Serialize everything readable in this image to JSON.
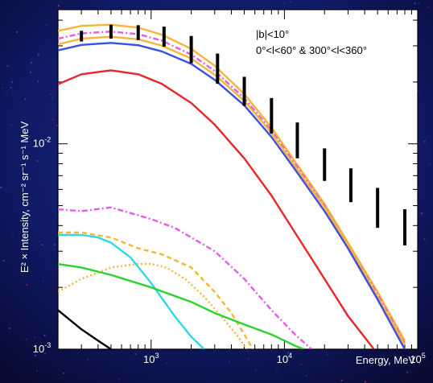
{
  "chart_data": {
    "type": "line",
    "title": "",
    "xlabel": "Energy, MeV",
    "ylabel": "E² × Intensity, cm⁻² sr⁻¹ s⁻¹ MeV",
    "xscale": "log",
    "yscale": "log",
    "xlim": [
      200,
      100000
    ],
    "ylim": [
      0.001,
      0.045
    ],
    "grid": false,
    "x_ticks": [
      {
        "value": 1000,
        "label": "10",
        "exp": "3"
      },
      {
        "value": 10000,
        "label": "10",
        "exp": "4"
      },
      {
        "value": 100000,
        "label": "10",
        "exp": "5"
      }
    ],
    "y_ticks": [
      {
        "value": 0.001,
        "label": "10",
        "exp": "-3"
      },
      {
        "value": 0.01,
        "label": "10",
        "exp": "-2"
      }
    ],
    "annotation": {
      "line1": "|b|<10°",
      "line2": "0°<l<60° & 300°<l<360°"
    },
    "series": [
      {
        "color": "#f5b638",
        "style": "solid",
        "x": [
          200,
          300,
          500,
          800,
          1200,
          2000,
          3000,
          5000,
          8000,
          12000,
          20000,
          30000,
          50000,
          80000
        ],
        "y": [
          0.0355,
          0.0375,
          0.038,
          0.0368,
          0.034,
          0.029,
          0.024,
          0.0175,
          0.012,
          0.0082,
          0.0051,
          0.0033,
          0.0019,
          0.0011
        ]
      },
      {
        "color": "#e55be6",
        "style": "dashdot",
        "x": [
          200,
          300,
          500,
          800,
          1200,
          2000,
          3000,
          5000,
          8000,
          12000,
          20000,
          30000,
          50000,
          80000
        ],
        "y": [
          0.0325,
          0.0345,
          0.0352,
          0.0342,
          0.0318,
          0.0272,
          0.0226,
          0.0167,
          0.0116,
          0.008,
          0.005,
          0.0032,
          0.00185,
          0.00107
        ]
      },
      {
        "color": "#f5b638",
        "style": "solid",
        "x": [
          200,
          300,
          500,
          800,
          1200,
          2000,
          3000,
          5000,
          8000,
          12000,
          20000,
          30000,
          50000,
          80000
        ],
        "y": [
          0.0305,
          0.0325,
          0.0332,
          0.0323,
          0.0301,
          0.026,
          0.0217,
          0.0162,
          0.0113,
          0.0078,
          0.0049,
          0.0032,
          0.0018,
          0.00105
        ]
      },
      {
        "color": "#3b4fe0",
        "style": "solid",
        "x": [
          200,
          300,
          500,
          800,
          1200,
          2000,
          3000,
          5000,
          8000,
          12000,
          20000,
          30000,
          50000,
          80000
        ],
        "y": [
          0.0285,
          0.0303,
          0.031,
          0.0302,
          0.0282,
          0.0245,
          0.0205,
          0.0154,
          0.0108,
          0.0075,
          0.0047,
          0.0031,
          0.00175,
          0.001
        ]
      },
      {
        "color": "#e8262a",
        "style": "solid",
        "x": [
          200,
          300,
          500,
          800,
          1200,
          2000,
          3000,
          5000,
          8000,
          12000,
          20000,
          30000,
          50000,
          70000
        ],
        "y": [
          0.0195,
          0.0218,
          0.0228,
          0.0218,
          0.0196,
          0.0158,
          0.0124,
          0.0085,
          0.0056,
          0.0037,
          0.0022,
          0.00145,
          0.00095,
          0.00072
        ]
      },
      {
        "color": "#e55be6",
        "style": "dashdot",
        "x": [
          200,
          300,
          500,
          700,
          1000,
          1500,
          2000,
          3000,
          5000,
          8000,
          12000,
          16000
        ],
        "y": [
          0.0048,
          0.0047,
          0.0049,
          0.0046,
          0.0043,
          0.0039,
          0.0035,
          0.003,
          0.0022,
          0.00155,
          0.00118,
          0.001
        ]
      },
      {
        "color": "#f5b638",
        "style": "dashed",
        "x": [
          200,
          300,
          500,
          800,
          1200,
          2000,
          3000,
          4000,
          5000,
          5800
        ],
        "y": [
          0.0037,
          0.0037,
          0.0035,
          0.0031,
          0.0029,
          0.0025,
          0.0019,
          0.0015,
          0.00118,
          0.001
        ]
      },
      {
        "color": "#f5b638",
        "style": "dotted",
        "x": [
          200,
          300,
          500,
          800,
          1000,
          1300,
          1800,
          2500,
          3500,
          4500,
          5200
        ],
        "y": [
          0.0019,
          0.0022,
          0.0025,
          0.0026,
          0.0026,
          0.0025,
          0.0022,
          0.0018,
          0.0014,
          0.00115,
          0.001
        ]
      },
      {
        "color": "#2fd8e6",
        "style": "solid",
        "x": [
          200,
          300,
          400,
          500,
          700,
          1000,
          1500,
          2000,
          2500
        ],
        "y": [
          0.0036,
          0.0036,
          0.0035,
          0.0033,
          0.0028,
          0.0021,
          0.00145,
          0.00115,
          0.001
        ]
      },
      {
        "color": "#2ed22e",
        "style": "solid",
        "x": [
          200,
          300,
          500,
          1000,
          2000,
          3000,
          5000,
          8000,
          12000,
          14000
        ],
        "y": [
          0.0026,
          0.0025,
          0.0023,
          0.002,
          0.0017,
          0.0015,
          0.00132,
          0.00118,
          0.00104,
          0.001
        ]
      },
      {
        "color": "#000000",
        "style": "solid",
        "x": [
          200,
          300,
          400,
          500
        ],
        "y": [
          0.00155,
          0.00125,
          0.0011,
          0.001
        ]
      }
    ],
    "data_points": {
      "color": "#000000",
      "x": [
        300,
        500,
        800,
        1250,
        2000,
        3150,
        5000,
        8000,
        12500,
        20000,
        31500,
        50000,
        80000
      ],
      "ylow": [
        0.0315,
        0.0325,
        0.032,
        0.0297,
        0.0247,
        0.0196,
        0.0153,
        0.0112,
        0.0085,
        0.0066,
        0.0052,
        0.0039,
        0.0032
      ],
      "yhigh": [
        0.0355,
        0.038,
        0.0378,
        0.0372,
        0.0335,
        0.0275,
        0.0212,
        0.0167,
        0.0127,
        0.0095,
        0.0076,
        0.0061,
        0.0048
      ]
    }
  }
}
